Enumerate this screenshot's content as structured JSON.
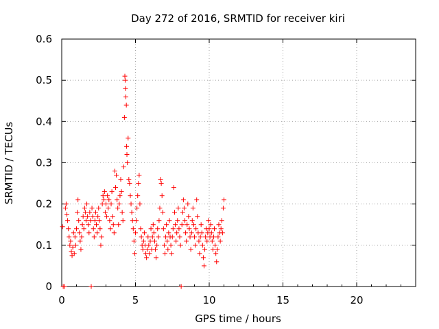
{
  "chart_data": {
    "type": "scatter",
    "title": "Day 272 of 2016, SRMTID for receiver kiri",
    "xlabel": "GPS time / hours",
    "ylabel": "SRMTID / TECUs",
    "xlim": [
      0,
      24
    ],
    "ylim": [
      0,
      0.6
    ],
    "xticks": [
      0,
      5,
      10,
      15,
      20
    ],
    "xtick_labels": [
      "0",
      "5",
      "10",
      "15",
      "20"
    ],
    "yticks": [
      0,
      0.1,
      0.2,
      0.3,
      0.4,
      0.5,
      0.6
    ],
    "ytick_labels": [
      "0",
      "0.1",
      "0.2",
      "0.3",
      "0.4",
      "0.5",
      "0.6"
    ],
    "grid": true,
    "marker": "plus",
    "color": "#ff0000",
    "series": [
      {
        "name": "SRMTID",
        "points": [
          [
            0.05,
            0.145
          ],
          [
            0.1,
            0.0
          ],
          [
            0.2,
            0.0
          ],
          [
            0.25,
            0.19
          ],
          [
            0.3,
            0.2
          ],
          [
            0.35,
            0.175
          ],
          [
            0.4,
            0.16
          ],
          [
            0.45,
            0.14
          ],
          [
            0.5,
            0.12
          ],
          [
            0.55,
            0.1
          ],
          [
            0.6,
            0.11
          ],
          [
            0.65,
            0.085
          ],
          [
            0.7,
            0.075
          ],
          [
            0.75,
            0.095
          ],
          [
            0.8,
            0.13
          ],
          [
            0.85,
            0.08
          ],
          [
            0.9,
            0.12
          ],
          [
            0.95,
            0.1
          ],
          [
            1.0,
            0.14
          ],
          [
            1.05,
            0.18
          ],
          [
            1.1,
            0.21
          ],
          [
            1.15,
            0.16
          ],
          [
            1.2,
            0.13
          ],
          [
            1.25,
            0.11
          ],
          [
            1.3,
            0.09
          ],
          [
            1.35,
            0.12
          ],
          [
            1.4,
            0.15
          ],
          [
            1.45,
            0.17
          ],
          [
            1.5,
            0.14
          ],
          [
            1.55,
            0.19
          ],
          [
            1.6,
            0.18
          ],
          [
            1.65,
            0.16
          ],
          [
            1.7,
            0.2
          ],
          [
            1.75,
            0.17
          ],
          [
            1.8,
            0.15
          ],
          [
            1.85,
            0.13
          ],
          [
            1.9,
            0.18
          ],
          [
            1.95,
            0.16
          ],
          [
            2.0,
            0.0
          ],
          [
            2.05,
            0.19
          ],
          [
            2.1,
            0.17
          ],
          [
            2.15,
            0.14
          ],
          [
            2.2,
            0.12
          ],
          [
            2.25,
            0.16
          ],
          [
            2.3,
            0.18
          ],
          [
            2.35,
            0.15
          ],
          [
            2.4,
            0.13
          ],
          [
            2.45,
            0.17
          ],
          [
            2.5,
            0.19
          ],
          [
            2.55,
            0.16
          ],
          [
            2.6,
            0.14
          ],
          [
            2.65,
            0.1
          ],
          [
            2.7,
            0.12
          ],
          [
            2.75,
            0.2
          ],
          [
            2.8,
            0.22
          ],
          [
            2.85,
            0.21
          ],
          [
            2.9,
            0.23
          ],
          [
            2.95,
            0.18
          ],
          [
            3.0,
            0.2
          ],
          [
            3.05,
            0.17
          ],
          [
            3.1,
            0.22
          ],
          [
            3.15,
            0.19
          ],
          [
            3.2,
            0.21
          ],
          [
            3.25,
            0.16
          ],
          [
            3.3,
            0.14
          ],
          [
            3.35,
            0.2
          ],
          [
            3.4,
            0.23
          ],
          [
            3.45,
            0.17
          ],
          [
            3.5,
            0.15
          ],
          [
            3.55,
            0.13
          ],
          [
            3.6,
            0.28
          ],
          [
            3.65,
            0.24
          ],
          [
            3.7,
            0.27
          ],
          [
            3.75,
            0.21
          ],
          [
            3.8,
            0.19
          ],
          [
            3.85,
            0.15
          ],
          [
            3.9,
            0.2
          ],
          [
            3.95,
            0.22
          ],
          [
            4.0,
            0.26
          ],
          [
            4.05,
            0.23
          ],
          [
            4.1,
            0.18
          ],
          [
            4.15,
            0.16
          ],
          [
            4.2,
            0.29
          ],
          [
            4.25,
            0.41
          ],
          [
            4.28,
            0.51
          ],
          [
            4.3,
            0.5
          ],
          [
            4.32,
            0.48
          ],
          [
            4.35,
            0.46
          ],
          [
            4.38,
            0.44
          ],
          [
            4.4,
            0.34
          ],
          [
            4.42,
            0.32
          ],
          [
            4.45,
            0.3
          ],
          [
            4.5,
            0.36
          ],
          [
            4.55,
            0.26
          ],
          [
            4.6,
            0.25
          ],
          [
            4.65,
            0.22
          ],
          [
            4.7,
            0.2
          ],
          [
            4.75,
            0.18
          ],
          [
            4.8,
            0.16
          ],
          [
            4.85,
            0.14
          ],
          [
            4.9,
            0.11
          ],
          [
            4.95,
            0.08
          ],
          [
            5.0,
            0.13
          ],
          [
            5.05,
            0.16
          ],
          [
            5.1,
            0.19
          ],
          [
            5.15,
            0.22
          ],
          [
            5.2,
            0.25
          ],
          [
            5.25,
            0.27
          ],
          [
            5.3,
            0.2
          ],
          [
            5.35,
            0.14
          ],
          [
            5.4,
            0.12
          ],
          [
            5.45,
            0.1
          ],
          [
            5.5,
            0.09
          ],
          [
            5.55,
            0.11
          ],
          [
            5.6,
            0.13
          ],
          [
            5.65,
            0.1
          ],
          [
            5.7,
            0.08
          ],
          [
            5.75,
            0.07
          ],
          [
            5.8,
            0.09
          ],
          [
            5.85,
            0.12
          ],
          [
            5.9,
            0.1
          ],
          [
            5.95,
            0.08
          ],
          [
            6.0,
            0.11
          ],
          [
            6.05,
            0.14
          ],
          [
            6.1,
            0.09
          ],
          [
            6.15,
            0.12
          ],
          [
            6.2,
            0.15
          ],
          [
            6.25,
            0.13
          ],
          [
            6.3,
            0.11
          ],
          [
            6.35,
            0.09
          ],
          [
            6.4,
            0.07
          ],
          [
            6.45,
            0.1
          ],
          [
            6.5,
            0.14
          ],
          [
            6.55,
            0.12
          ],
          [
            6.6,
            0.16
          ],
          [
            6.65,
            0.19
          ],
          [
            6.7,
            0.26
          ],
          [
            6.75,
            0.25
          ],
          [
            6.8,
            0.22
          ],
          [
            6.85,
            0.18
          ],
          [
            6.9,
            0.14
          ],
          [
            6.95,
            0.1
          ],
          [
            7.0,
            0.08
          ],
          [
            7.05,
            0.12
          ],
          [
            7.1,
            0.15
          ],
          [
            7.15,
            0.11
          ],
          [
            7.2,
            0.09
          ],
          [
            7.25,
            0.13
          ],
          [
            7.3,
            0.16
          ],
          [
            7.35,
            0.12
          ],
          [
            7.4,
            0.1
          ],
          [
            7.45,
            0.08
          ],
          [
            7.5,
            0.12
          ],
          [
            7.55,
            0.14
          ],
          [
            7.6,
            0.24
          ],
          [
            7.65,
            0.18
          ],
          [
            7.7,
            0.15
          ],
          [
            7.75,
            0.11
          ],
          [
            7.8,
            0.13
          ],
          [
            7.85,
            0.16
          ],
          [
            7.9,
            0.19
          ],
          [
            7.95,
            0.14
          ],
          [
            8.0,
            0.12
          ],
          [
            8.05,
            0.1
          ],
          [
            8.1,
            0.0
          ],
          [
            8.15,
            0.15
          ],
          [
            8.2,
            0.18
          ],
          [
            8.25,
            0.21
          ],
          [
            8.3,
            0.19
          ],
          [
            8.35,
            0.16
          ],
          [
            8.4,
            0.13
          ],
          [
            8.45,
            0.11
          ],
          [
            8.5,
            0.15
          ],
          [
            8.55,
            0.2
          ],
          [
            8.6,
            0.17
          ],
          [
            8.65,
            0.14
          ],
          [
            8.7,
            0.12
          ],
          [
            8.75,
            0.09
          ],
          [
            8.8,
            0.13
          ],
          [
            8.85,
            0.16
          ],
          [
            8.9,
            0.19
          ],
          [
            8.95,
            0.15
          ],
          [
            9.0,
            0.12
          ],
          [
            9.05,
            0.1
          ],
          [
            9.1,
            0.14
          ],
          [
            9.15,
            0.21
          ],
          [
            9.2,
            0.17
          ],
          [
            9.25,
            0.13
          ],
          [
            9.3,
            0.11
          ],
          [
            9.35,
            0.08
          ],
          [
            9.4,
            0.12
          ],
          [
            9.45,
            0.15
          ],
          [
            9.5,
            0.13
          ],
          [
            9.55,
            0.1
          ],
          [
            9.6,
            0.07
          ],
          [
            9.65,
            0.05
          ],
          [
            9.7,
            0.09
          ],
          [
            9.75,
            0.12
          ],
          [
            9.8,
            0.14
          ],
          [
            9.85,
            0.11
          ],
          [
            9.9,
            0.13
          ],
          [
            9.95,
            0.16
          ],
          [
            10.0,
            0.14
          ],
          [
            10.05,
            0.12
          ],
          [
            10.1,
            0.15
          ],
          [
            10.15,
            0.13
          ],
          [
            10.2,
            0.11
          ],
          [
            10.25,
            0.09
          ],
          [
            10.3,
            0.12
          ],
          [
            10.35,
            0.14
          ],
          [
            10.4,
            0.1
          ],
          [
            10.45,
            0.08
          ],
          [
            10.5,
            0.06
          ],
          [
            10.55,
            0.09
          ],
          [
            10.6,
            0.12
          ],
          [
            10.65,
            0.15
          ],
          [
            10.7,
            0.13
          ],
          [
            10.75,
            0.11
          ],
          [
            10.8,
            0.14
          ],
          [
            10.85,
            0.16
          ],
          [
            10.9,
            0.13
          ],
          [
            10.95,
            0.19
          ],
          [
            11.0,
            0.21
          ]
        ]
      }
    ]
  }
}
